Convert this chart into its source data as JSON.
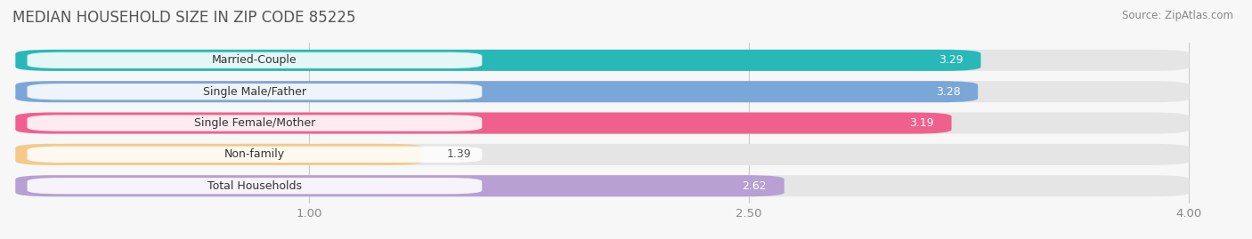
{
  "title": "MEDIAN HOUSEHOLD SIZE IN ZIP CODE 85225",
  "source": "Source: ZipAtlas.com",
  "categories": [
    "Married-Couple",
    "Single Male/Father",
    "Single Female/Mother",
    "Non-family",
    "Total Households"
  ],
  "values": [
    3.29,
    3.28,
    3.19,
    1.39,
    2.62
  ],
  "bar_colors": [
    "#29b8b8",
    "#7ba7d8",
    "#f0608f",
    "#f5c98a",
    "#b89fd4"
  ],
  "xlim_min": 0,
  "xlim_max": 4.0,
  "xticks": [
    1.0,
    2.5,
    4.0
  ],
  "xlabel_fontsize": 9.5,
  "title_fontsize": 12,
  "background_color": "#f7f7f7",
  "bar_background_color": "#e5e5e5",
  "value_color_inside": "#ffffff",
  "value_color_outside": "#555555",
  "label_fontsize": 9,
  "value_fontsize": 9
}
